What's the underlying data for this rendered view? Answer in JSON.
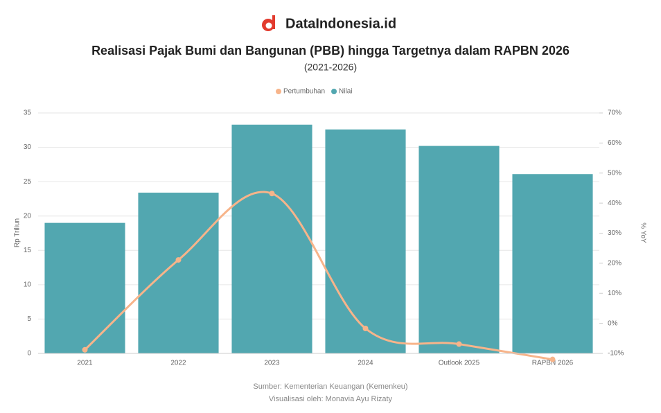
{
  "brand": "DataIndonesia.id",
  "chart_data": {
    "type": "bar-line",
    "title": "Realisasi Pajak Bumi dan Bangunan (PBB) hingga Targetnya dalam RAPBN 2026",
    "subtitle": "(2021-2026)",
    "ylabel": "Rp Triliun",
    "y2label": "% YoY",
    "categories": [
      "2021",
      "2022",
      "2023",
      "2024",
      "Outlook 2025",
      "RAPBN 2026"
    ],
    "series": [
      {
        "name": "Pertumbuhan",
        "type": "line",
        "axis": "y2",
        "color": "#f7b48a",
        "values": [
          -8.8,
          21.1,
          43.2,
          -1.7,
          -6.9,
          -12.0
        ]
      },
      {
        "name": "Nilai",
        "type": "bar",
        "axis": "y",
        "color": "#52a7b0",
        "values": [
          19.0,
          23.4,
          33.3,
          32.6,
          30.2,
          26.1
        ]
      }
    ],
    "ylim": [
      0,
      35
    ],
    "yticks": [
      0,
      5,
      10,
      15,
      20,
      25,
      30,
      35
    ],
    "y2lim": [
      -10,
      70
    ],
    "y2ticks": [
      {
        "value": -10,
        "label": "-10%"
      },
      {
        "value": 0,
        "label": "0%"
      },
      {
        "value": 10,
        "label": "10%"
      },
      {
        "value": 20,
        "label": "20%"
      },
      {
        "value": 30,
        "label": "30%"
      },
      {
        "value": 40,
        "label": "40%"
      },
      {
        "value": 50,
        "label": "50%"
      },
      {
        "value": 60,
        "label": "60%"
      },
      {
        "value": 70,
        "label": "70%"
      }
    ],
    "grid": true,
    "legend": "top",
    "source": "Sumber: Kementerian Keuangan (Kemenkeu)",
    "credit": "Visualisasi oleh: Monavia Ayu Rizaty"
  }
}
